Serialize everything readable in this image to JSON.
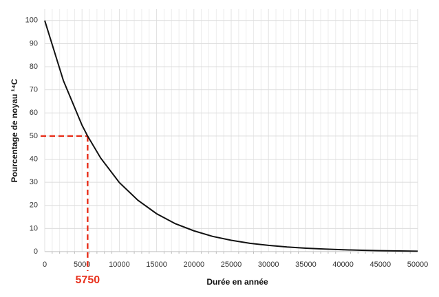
{
  "chart_data": {
    "type": "line",
    "xlabel": "Durée en année",
    "ylabel": "Pourcentage de noyau ¹⁴C",
    "x": [
      0,
      2500,
      5000,
      5750,
      7500,
      10000,
      12500,
      15000,
      17500,
      20000,
      22500,
      25000,
      27500,
      30000,
      32500,
      35000,
      37500,
      40000,
      42500,
      45000,
      47500,
      50000
    ],
    "series": [
      {
        "color": "#111111",
        "values": [
          100,
          74.0,
          54.7,
          50,
          40.5,
          29.9,
          22.2,
          16.4,
          12.1,
          9.0,
          6.6,
          4.9,
          3.6,
          2.7,
          2.0,
          1.5,
          1.1,
          0.8,
          0.6,
          0.4,
          0.3,
          0.2
        ]
      }
    ],
    "xlim": [
      0,
      50000
    ],
    "xticks": [
      0,
      5000,
      10000,
      15000,
      20000,
      25000,
      30000,
      35000,
      40000,
      45000,
      50000
    ],
    "ylim": [
      0,
      105
    ],
    "yticks": [
      0,
      10,
      20,
      30,
      40,
      50,
      60,
      70,
      80,
      90,
      100
    ],
    "grid": true,
    "minor_grid": true,
    "annotation": {
      "text": "5750",
      "x": 5750,
      "y": 50,
      "color": "#e8321e"
    }
  }
}
